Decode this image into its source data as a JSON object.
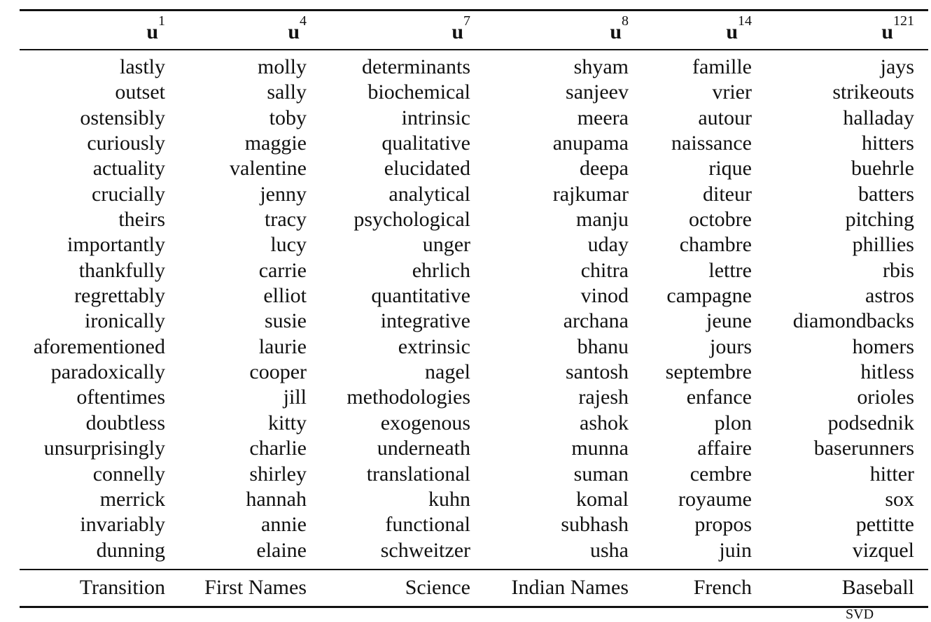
{
  "table": {
    "columns": [
      {
        "letter": "u",
        "index": "1",
        "category": "Transition",
        "words": [
          "lastly",
          "outset",
          "ostensibly",
          "curiously",
          "actuality",
          "crucially",
          "theirs",
          "importantly",
          "thankfully",
          "regrettably",
          "ironically",
          "aforementioned",
          "paradoxically",
          "oftentimes",
          "doubtless",
          "unsurprisingly",
          "connelly",
          "merrick",
          "invariably",
          "dunning"
        ]
      },
      {
        "letter": "u",
        "index": "4",
        "category": "First Names",
        "words": [
          "molly",
          "sally",
          "toby",
          "maggie",
          "valentine",
          "jenny",
          "tracy",
          "lucy",
          "carrie",
          "elliot",
          "susie",
          "laurie",
          "cooper",
          "jill",
          "kitty",
          "charlie",
          "shirley",
          "hannah",
          "annie",
          "elaine"
        ]
      },
      {
        "letter": "u",
        "index": "7",
        "category": "Science",
        "words": [
          "determinants",
          "biochemical",
          "intrinsic",
          "qualitative",
          "elucidated",
          "analytical",
          "psychological",
          "unger",
          "ehrlich",
          "quantitative",
          "integrative",
          "extrinsic",
          "nagel",
          "methodologies",
          "exogenous",
          "underneath",
          "translational",
          "kuhn",
          "functional",
          "schweitzer"
        ]
      },
      {
        "letter": "u",
        "index": "8",
        "category": "Indian Names",
        "words": [
          "shyam",
          "sanjeev",
          "meera",
          "anupama",
          "deepa",
          "rajkumar",
          "manju",
          "uday",
          "chitra",
          "vinod",
          "archana",
          "bhanu",
          "santosh",
          "rajesh",
          "ashok",
          "munna",
          "suman",
          "komal",
          "subhash",
          "usha"
        ]
      },
      {
        "letter": "u",
        "index": "14",
        "category": "French",
        "words": [
          "famille",
          "vrier",
          "autour",
          "naissance",
          "rique",
          "diteur",
          "octobre",
          "chambre",
          "lettre",
          "campagne",
          "jeune",
          "jours",
          "septembre",
          "enfance",
          "plon",
          "affaire",
          "cembre",
          "royaume",
          "propos",
          "juin"
        ]
      },
      {
        "letter": "u",
        "index": "121",
        "category": "Baseball",
        "words": [
          "jays",
          "strikeouts",
          "halladay",
          "hitters",
          "buehrle",
          "batters",
          "pitching",
          "phillies",
          "rbis",
          "astros",
          "diamondbacks",
          "homers",
          "hitless",
          "orioles",
          "podsednik",
          "baserunners",
          "hitter",
          "sox",
          "pettitte",
          "vizquel"
        ]
      }
    ]
  },
  "cut_text": "SVD"
}
